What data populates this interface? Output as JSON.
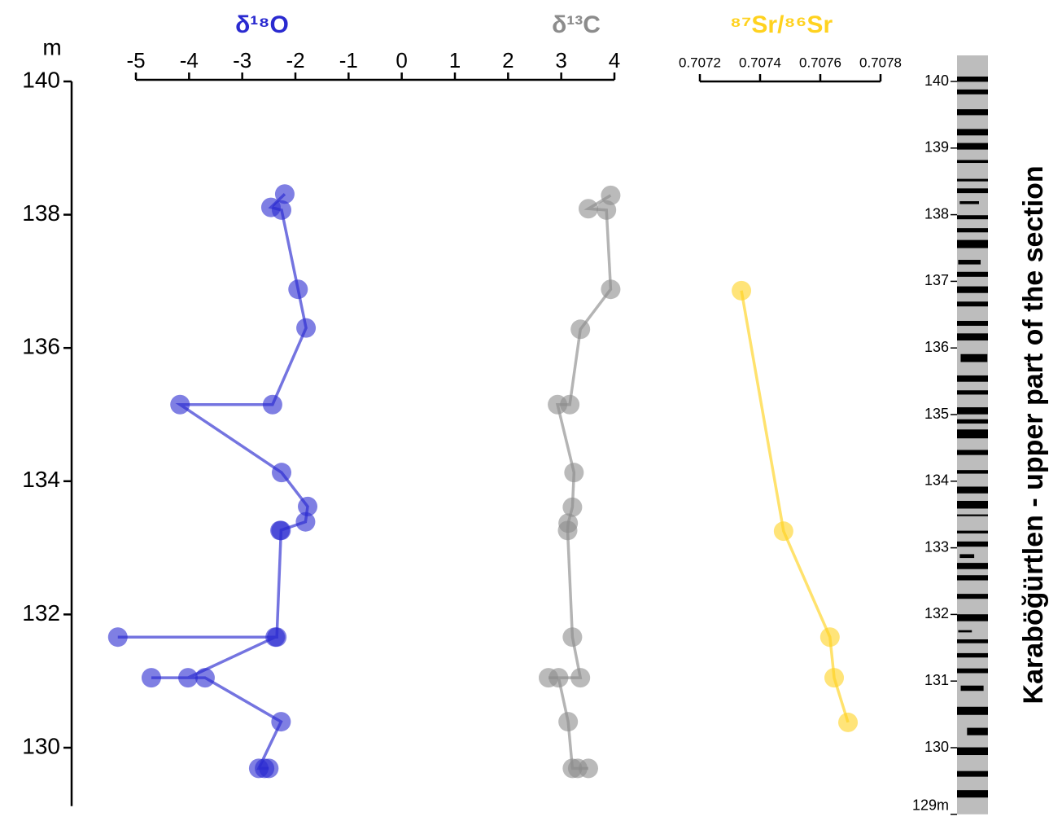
{
  "chart_data": [
    {
      "type": "line",
      "xlim": [
        -5,
        4
      ],
      "xticks": [
        -5,
        -4,
        -3,
        -2,
        -1,
        0,
        1,
        2,
        3,
        4
      ],
      "ylim": [
        129,
        140
      ],
      "yticks": [
        130,
        132,
        134,
        136,
        138,
        140
      ],
      "y_label": "m",
      "series": [
        {
          "name": "δ¹⁸O",
          "color": "#2a2ad0",
          "x": [
            -2.2,
            -2.46,
            -2.26,
            -1.95,
            -1.8,
            -2.43,
            -4.17,
            -2.26,
            -1.77,
            -1.81,
            -2.29,
            -2.27,
            -2.35,
            -5.34,
            -2.38,
            -4.02,
            -4.71,
            -3.7,
            -2.27,
            -2.69,
            -2.5,
            -2.58
          ],
          "y": [
            138.31,
            138.11,
            138.07,
            136.88,
            136.3,
            135.15,
            135.15,
            134.13,
            133.62,
            133.39,
            133.26,
            133.26,
            131.66,
            131.66,
            131.66,
            131.05,
            131.05,
            131.05,
            130.39,
            129.69,
            129.69,
            129.69
          ]
        },
        {
          "name": "δ¹³C",
          "color": "#8c8c8c",
          "x": [
            3.93,
            3.51,
            3.85,
            3.93,
            3.36,
            3.16,
            2.93,
            3.24,
            3.21,
            3.13,
            3.12,
            3.21,
            3.36,
            2.76,
            2.95,
            3.13,
            3.21,
            3.51,
            3.31
          ],
          "y": [
            138.29,
            138.09,
            138.07,
            136.88,
            136.28,
            135.15,
            135.15,
            134.13,
            133.61,
            133.37,
            133.26,
            131.66,
            131.05,
            131.05,
            131.05,
            130.39,
            129.69,
            129.69,
            129.69
          ]
        }
      ]
    },
    {
      "type": "line",
      "xlim": [
        0.7072,
        0.7078
      ],
      "xticks": [
        0.7072,
        0.7074,
        0.7076,
        0.7078
      ],
      "ylim": [
        129,
        140
      ],
      "series": [
        {
          "name": "⁸⁷Sr/⁸⁶Sr",
          "color": "#ffd21f",
          "x": [
            0.707338,
            0.707478,
            0.707632,
            0.707646,
            0.707692
          ],
          "y": [
            136.86,
            133.25,
            131.66,
            131.05,
            130.38
          ]
        }
      ]
    },
    {
      "type": "column",
      "title": "Karaböğürtlen - upper part of the section",
      "ylim": [
        129,
        140
      ],
      "yticks": [
        {
          "value": 129,
          "label": "129m"
        },
        130,
        131,
        132,
        133,
        134,
        135,
        136,
        137,
        138,
        139,
        140
      ]
    }
  ]
}
